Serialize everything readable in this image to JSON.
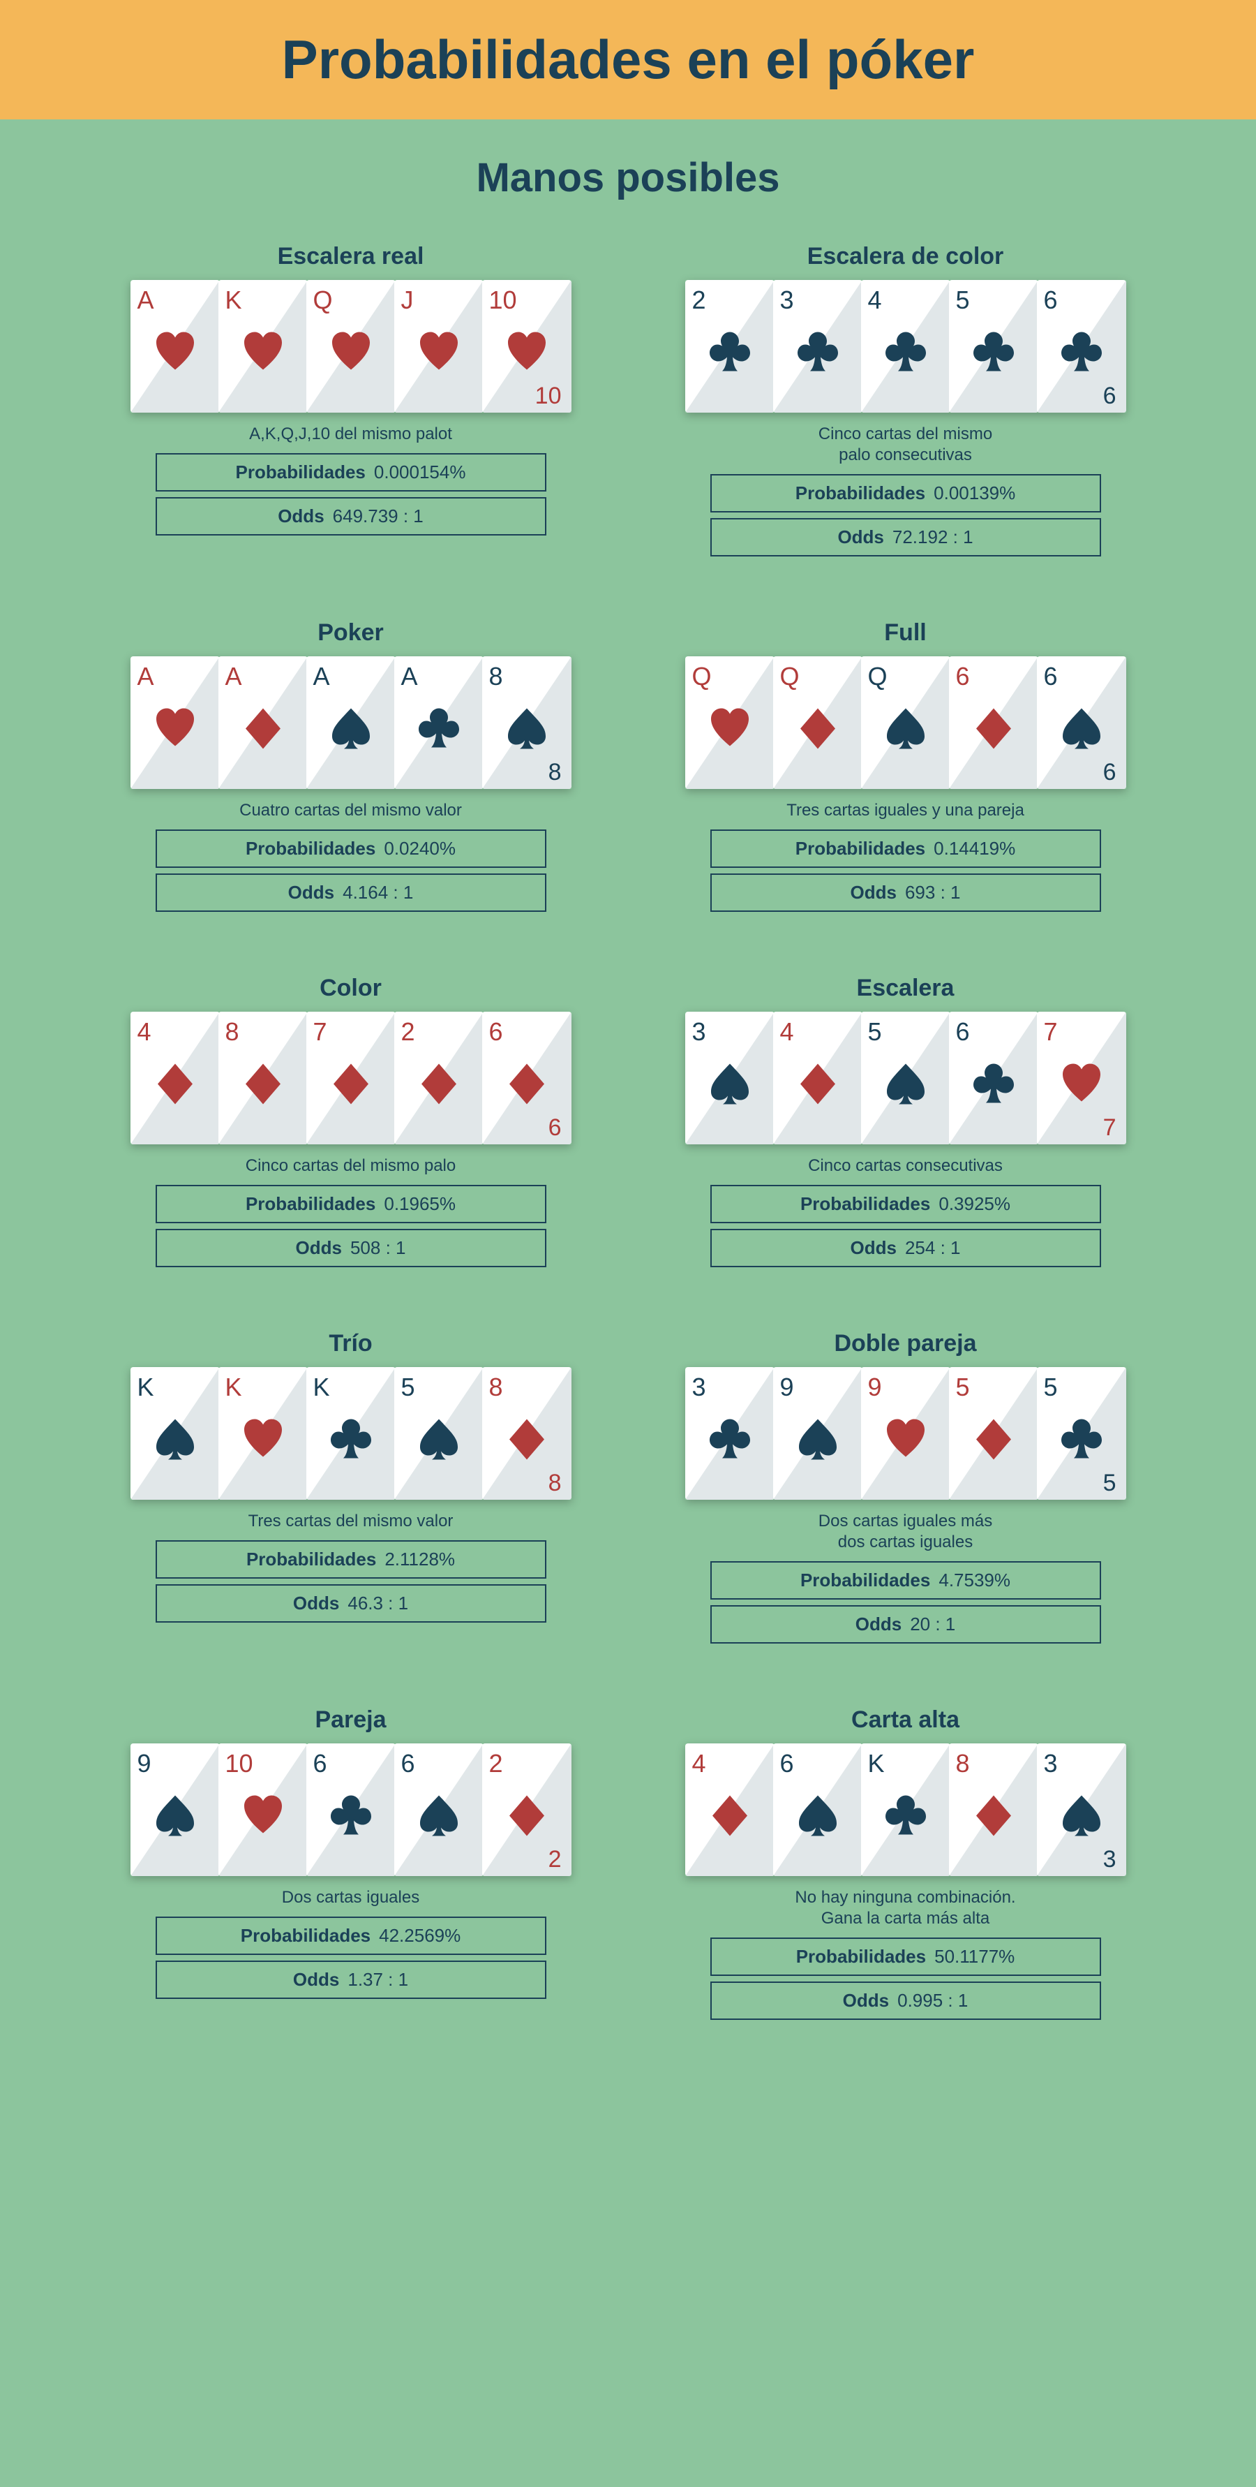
{
  "title": "Probabilidades en el póker",
  "subtitle": "Manos posibles",
  "colors": {
    "background": "#8cc59d",
    "header_bg": "#f4b758",
    "text_dark": "#1b4157",
    "suit_red": "#b13c3a",
    "suit_blue": "#1b4157",
    "card_bg": "#ffffff",
    "card_fold": "#e1e7e9"
  },
  "labels": {
    "probability": "Probabilidades",
    "odds": "Odds"
  },
  "hands": [
    {
      "name": "Escalera real",
      "cards": [
        {
          "rank": "A",
          "suit": "heart",
          "color": "red"
        },
        {
          "rank": "K",
          "suit": "heart",
          "color": "red"
        },
        {
          "rank": "Q",
          "suit": "heart",
          "color": "red"
        },
        {
          "rank": "J",
          "suit": "heart",
          "color": "red"
        },
        {
          "rank": "10",
          "suit": "heart",
          "color": "red"
        }
      ],
      "corner": "10",
      "corner_color": "red",
      "desc": "A,K,Q,J,10 del mismo palot",
      "probability": "0.000154%",
      "odds": "649.739 : 1"
    },
    {
      "name": "Escalera de color",
      "cards": [
        {
          "rank": "2",
          "suit": "club",
          "color": "blue"
        },
        {
          "rank": "3",
          "suit": "club",
          "color": "blue"
        },
        {
          "rank": "4",
          "suit": "club",
          "color": "blue"
        },
        {
          "rank": "5",
          "suit": "club",
          "color": "blue"
        },
        {
          "rank": "6",
          "suit": "club",
          "color": "blue"
        }
      ],
      "corner": "6",
      "corner_color": "blue",
      "desc": "Cinco cartas del mismo\npalo consecutivas",
      "probability": "0.00139%",
      "odds": "72.192 : 1"
    },
    {
      "name": "Poker",
      "cards": [
        {
          "rank": "A",
          "suit": "heart",
          "color": "red"
        },
        {
          "rank": "A",
          "suit": "diamond",
          "color": "red"
        },
        {
          "rank": "A",
          "suit": "spade",
          "color": "blue"
        },
        {
          "rank": "A",
          "suit": "club",
          "color": "blue"
        },
        {
          "rank": "8",
          "suit": "spade",
          "color": "blue"
        }
      ],
      "corner": "8",
      "corner_color": "blue",
      "desc": "Cuatro cartas del mismo valor",
      "probability": "0.0240%",
      "odds": "4.164 : 1"
    },
    {
      "name": "Full",
      "cards": [
        {
          "rank": "Q",
          "suit": "heart",
          "color": "red"
        },
        {
          "rank": "Q",
          "suit": "diamond",
          "color": "red"
        },
        {
          "rank": "Q",
          "suit": "spade",
          "color": "blue"
        },
        {
          "rank": "6",
          "suit": "diamond",
          "color": "red"
        },
        {
          "rank": "6",
          "suit": "spade",
          "color": "blue"
        }
      ],
      "corner": "6",
      "corner_color": "blue",
      "desc": "Tres cartas iguales y una pareja",
      "probability": "0.14419%",
      "odds": "693 : 1"
    },
    {
      "name": "Color",
      "cards": [
        {
          "rank": "4",
          "suit": "diamond",
          "color": "red"
        },
        {
          "rank": "8",
          "suit": "diamond",
          "color": "red"
        },
        {
          "rank": "7",
          "suit": "diamond",
          "color": "red"
        },
        {
          "rank": "2",
          "suit": "diamond",
          "color": "red"
        },
        {
          "rank": "6",
          "suit": "diamond",
          "color": "red"
        }
      ],
      "corner": "6",
      "corner_color": "red",
      "desc": "Cinco cartas del mismo palo",
      "probability": "0.1965%",
      "odds": "508 : 1"
    },
    {
      "name": "Escalera",
      "cards": [
        {
          "rank": "3",
          "suit": "spade",
          "color": "blue"
        },
        {
          "rank": "4",
          "suit": "diamond",
          "color": "red"
        },
        {
          "rank": "5",
          "suit": "spade",
          "color": "blue"
        },
        {
          "rank": "6",
          "suit": "club",
          "color": "blue"
        },
        {
          "rank": "7",
          "suit": "heart",
          "color": "red"
        }
      ],
      "corner": "7",
      "corner_color": "red",
      "desc": "Cinco cartas consecutivas",
      "probability": "0.3925%",
      "odds": "254 : 1"
    },
    {
      "name": "Trío",
      "cards": [
        {
          "rank": "K",
          "suit": "spade",
          "color": "blue"
        },
        {
          "rank": "K",
          "suit": "heart",
          "color": "red"
        },
        {
          "rank": "K",
          "suit": "club",
          "color": "blue"
        },
        {
          "rank": "5",
          "suit": "spade",
          "color": "blue"
        },
        {
          "rank": "8",
          "suit": "diamond",
          "color": "red"
        }
      ],
      "corner": "8",
      "corner_color": "red",
      "desc": "Tres cartas del mismo valor",
      "probability": "2.1128%",
      "odds": "46.3 : 1"
    },
    {
      "name": "Doble pareja",
      "cards": [
        {
          "rank": "3",
          "suit": "club",
          "color": "blue"
        },
        {
          "rank": "9",
          "suit": "spade",
          "color": "blue"
        },
        {
          "rank": "9",
          "suit": "heart",
          "color": "red"
        },
        {
          "rank": "5",
          "suit": "diamond",
          "color": "red"
        },
        {
          "rank": "5",
          "suit": "club",
          "color": "blue"
        }
      ],
      "corner": "5",
      "corner_color": "blue",
      "desc": "Dos cartas iguales más\ndos cartas iguales",
      "probability": "4.7539%",
      "odds": "20 : 1"
    },
    {
      "name": "Pareja",
      "cards": [
        {
          "rank": "9",
          "suit": "spade",
          "color": "blue"
        },
        {
          "rank": "10",
          "suit": "heart",
          "color": "red"
        },
        {
          "rank": "6",
          "suit": "club",
          "color": "blue"
        },
        {
          "rank": "6",
          "suit": "spade",
          "color": "blue"
        },
        {
          "rank": "2",
          "suit": "diamond",
          "color": "red"
        }
      ],
      "corner": "2",
      "corner_color": "red",
      "desc": "Dos cartas iguales",
      "probability": "42.2569%",
      "odds": "1.37 : 1"
    },
    {
      "name": "Carta alta",
      "cards": [
        {
          "rank": "4",
          "suit": "diamond",
          "color": "red"
        },
        {
          "rank": "6",
          "suit": "spade",
          "color": "blue"
        },
        {
          "rank": "K",
          "suit": "club",
          "color": "blue"
        },
        {
          "rank": "8",
          "suit": "diamond",
          "color": "red"
        },
        {
          "rank": "3",
          "suit": "spade",
          "color": "blue"
        }
      ],
      "corner": "3",
      "corner_color": "blue",
      "desc": "No hay ninguna combinación.\nGana la carta más alta",
      "probability": "50.1177%",
      "odds": "0.995 : 1"
    }
  ]
}
